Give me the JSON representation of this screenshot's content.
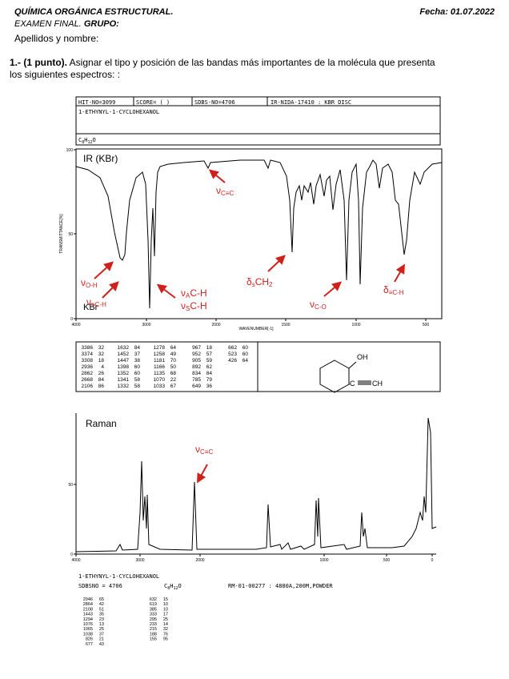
{
  "header": {
    "course": "QUÍMICA ORGÁNICA ESTRUCTURAL.",
    "date": "Fecha: 01.07.2022",
    "exam": "EXAMEN FINAL.",
    "group": "GRUPO:",
    "name": "Apellidos y nombre:"
  },
  "question": {
    "number": "1.- (1 punto).",
    "text": "Asignar el tipo y posición de las bandas más importantes de la molécula que presenta los siguientes espectros: :"
  },
  "ir": {
    "box": {
      "hit": "HIT-NO=3099",
      "score": "SCORE= (  )",
      "sdbs": "SDBS-NO=4706",
      "source": "IR-NIDA-17410 : KBR DISC",
      "compound": "1-ETHYNYL-1-CYCLOHEXANOL",
      "formula": [
        "C",
        "8",
        "H",
        "12",
        "O"
      ]
    },
    "title": "IR (KBr)",
    "medium": "KBr",
    "ylabel": "TRANSMITTANCE[%]",
    "xlabel": "WAVENUMBER[-1]",
    "yticks": [
      "100",
      "50",
      "0"
    ],
    "xticks": [
      "4000",
      "3000",
      "2000",
      "1500",
      "1000",
      "500"
    ],
    "annotations": {
      "oh": [
        "ν",
        "O-H"
      ],
      "ch_alkyne": [
        "ν",
        "≡C-H"
      ],
      "ch_a": [
        "ν",
        "A",
        "C-H"
      ],
      "ch_s": [
        "ν",
        "S",
        "C-H"
      ],
      "cc": [
        "ν",
        "C≡C"
      ],
      "ch2": [
        "δ",
        "s",
        "CH",
        "2"
      ],
      "co": [
        "ν",
        "C-O"
      ],
      "ch_bend": [
        "δ",
        "≡C-H"
      ]
    },
    "peaks": [
      [
        [
          "3386",
          "32"
        ],
        [
          "3374",
          "32"
        ],
        [
          "3308",
          "18"
        ],
        [
          "2936",
          "4"
        ],
        [
          "2862",
          "26"
        ],
        [
          "2668",
          "84"
        ],
        [
          "2106",
          "86"
        ]
      ],
      [
        [
          "1632",
          "84"
        ],
        [
          "1452",
          "37"
        ],
        [
          "1447",
          "38"
        ],
        [
          "1398",
          "60"
        ],
        [
          "1352",
          "60"
        ],
        [
          "1341",
          "58"
        ],
        [
          "1332",
          "58"
        ]
      ],
      [
        [
          "1278",
          "64"
        ],
        [
          "1258",
          "49"
        ],
        [
          "1181",
          "70"
        ],
        [
          "1166",
          "50"
        ],
        [
          "1135",
          "68"
        ],
        [
          "1070",
          "22"
        ],
        [
          "1033",
          "67"
        ]
      ],
      [
        [
          "967",
          "18"
        ],
        [
          "952",
          "57"
        ],
        [
          "905",
          "59"
        ],
        [
          "892",
          "62"
        ],
        [
          "834",
          "84"
        ],
        [
          "785",
          "79"
        ],
        [
          "649",
          "36"
        ]
      ],
      [
        [
          "662",
          "60"
        ],
        [
          "523",
          "60"
        ],
        [
          "426",
          "64"
        ]
      ]
    ],
    "structure": {
      "oh": "OH",
      "c": "C",
      "ch": "CH"
    }
  },
  "raman": {
    "title": "Raman",
    "annotation": [
      "ν",
      "C≡C"
    ],
    "yticks": [
      "50",
      "0"
    ],
    "xticks": [
      "4000",
      "3000",
      "2000",
      "1000",
      "500",
      "0"
    ],
    "compound": "1-ETHYNYL-1-CYCLOHEXANOL",
    "sdbs": "SDBSNO = 4706",
    "formula": [
      "C",
      "8",
      "H",
      "12",
      "O"
    ],
    "source": "RM-01-00277 : 4880A,200M,POWDER",
    "peaks": [
      [
        [
          "2946",
          "65"
        ],
        [
          "2864",
          "42"
        ],
        [
          "2108",
          "51"
        ],
        [
          "1443",
          "35"
        ],
        [
          "1294",
          "23"
        ],
        [
          "1076",
          "13"
        ],
        [
          "1065",
          "25"
        ],
        [
          "1038",
          "37"
        ],
        [
          "826",
          "21"
        ],
        [
          "677",
          "43"
        ]
      ],
      [
        [
          "632",
          "15"
        ],
        [
          "619",
          "10"
        ],
        [
          "385",
          "10"
        ],
        [
          "333",
          "17"
        ],
        [
          "295",
          "25"
        ],
        [
          "233",
          "14"
        ],
        [
          "215",
          "32"
        ],
        [
          "188",
          "76"
        ],
        [
          "155",
          "95"
        ]
      ]
    ]
  }
}
